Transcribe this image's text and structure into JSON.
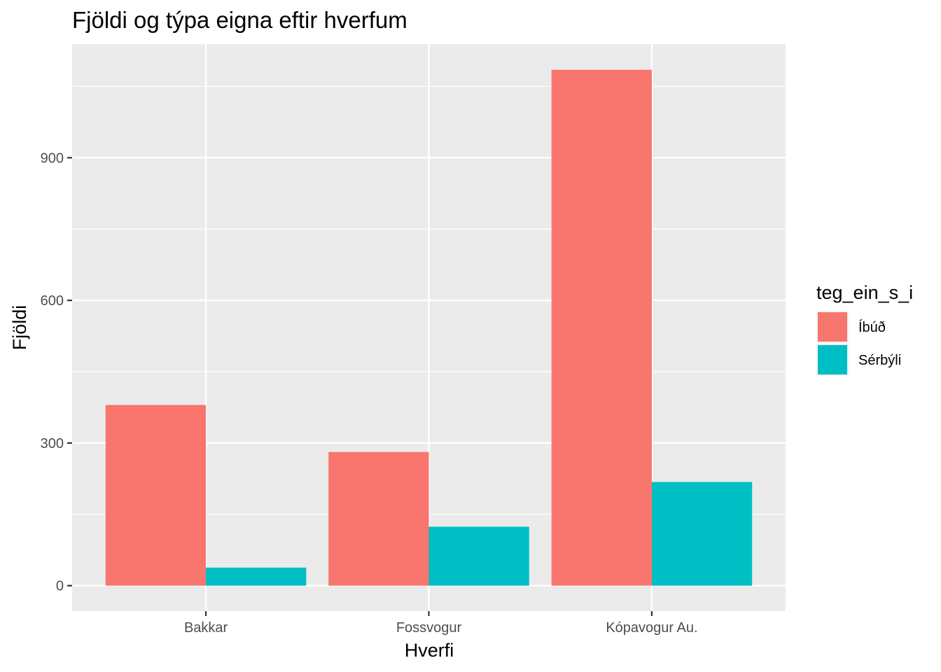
{
  "chart_data": {
    "type": "bar",
    "title": "Fjöldi og týpa eigna eftir hverfum",
    "xlabel": "Hverfi",
    "ylabel": "Fjöldi",
    "categories": [
      "Bakkar",
      "Fossvogur",
      "Kópavogur Au."
    ],
    "series": [
      {
        "name": "Íbúð",
        "color": "#F8766D",
        "values": [
          380,
          281,
          1085
        ]
      },
      {
        "name": "Sérbýli",
        "color": "#00BFC4",
        "values": [
          38,
          124,
          218
        ]
      }
    ],
    "ylim": [
      -53.5,
      1139
    ],
    "yticks": [
      0,
      300,
      600,
      900
    ],
    "ytick_labels": [
      "0",
      "300",
      "600",
      "900"
    ],
    "grid": true,
    "legend": {
      "title": "teg_ein_s_i",
      "position": "right"
    },
    "panel_background": "#EBEBEB"
  }
}
